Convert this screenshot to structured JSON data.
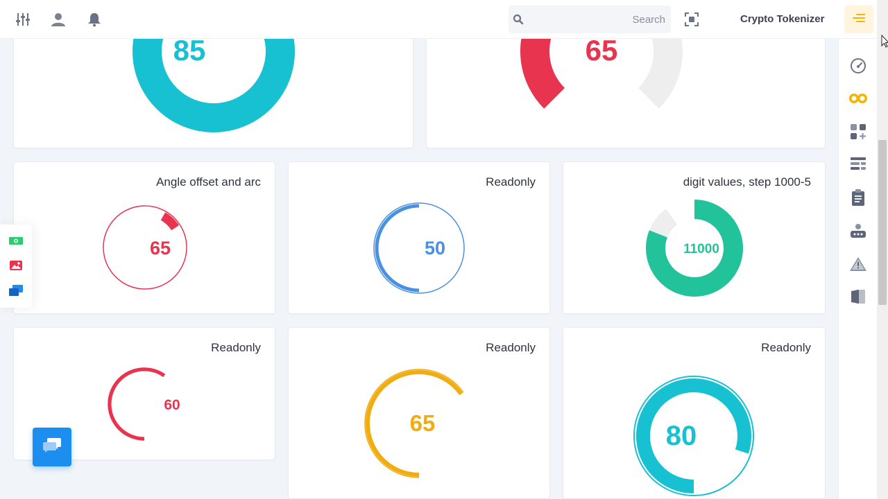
{
  "header": {
    "brand": "Crypto Tokenizer",
    "search_placeholder": "Search",
    "icons": [
      "sliders-icon",
      "user-icon",
      "bell-icon",
      "fullscreen-icon",
      "menu-icon"
    ],
    "accent": "#f4b400"
  },
  "sidebar": {
    "icons": [
      "dashboard-gauge-icon",
      "crypto-coins-icon",
      "apps-icon",
      "layout-icon",
      "clipboard-icon",
      "robot-icon",
      "warning-icon",
      "pages-icon"
    ]
  },
  "float_toolbar": {
    "icons": [
      "money-icon",
      "image-icon",
      "chat-windows-icon"
    ]
  },
  "cards": [
    {
      "title": "",
      "value": "85",
      "color": "#17c1d1",
      "percent": 1.0
    },
    {
      "title": "",
      "value": "65",
      "color": "#e8344e",
      "percent": 0.65
    },
    {
      "title": "Angle offset and arc",
      "value": "65",
      "color": "#e8344e",
      "percent": 0.65
    },
    {
      "title": "Readonly",
      "value": "50",
      "color": "#4a90e2",
      "percent": 0.5
    },
    {
      "title": "digit values, step 1000-5",
      "value": "11000",
      "color": "#22c39a",
      "percent": 0.9
    },
    {
      "title": "Readonly",
      "value": "60",
      "color": "#e8344e",
      "percent": 0.6
    },
    {
      "title": "Readonly",
      "value": "65",
      "color": "#f0ac10",
      "percent": 0.65
    },
    {
      "title": "Readonly",
      "value": "80",
      "color": "#17c1d1",
      "percent": 0.8
    }
  ]
}
